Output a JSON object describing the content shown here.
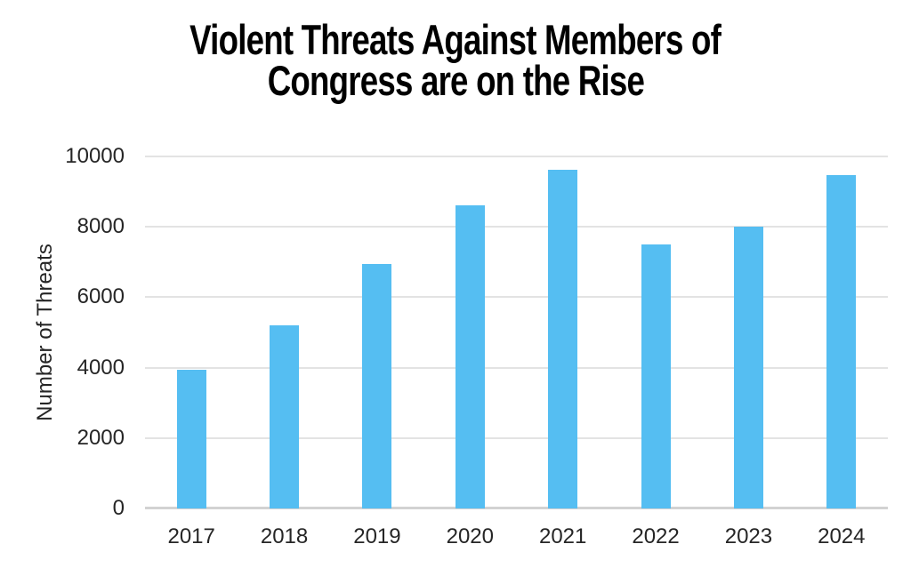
{
  "title": {
    "lines": [
      "Violent Threats Against Members of",
      "Congress are on the Rise"
    ]
  },
  "chart_data": {
    "type": "bar",
    "title": "Violent Threats Against Members of Congress are on the Rise",
    "categories": [
      "2017",
      "2018",
      "2019",
      "2020",
      "2021",
      "2022",
      "2023",
      "2024"
    ],
    "values": [
      3939,
      5206,
      6955,
      8613,
      9625,
      7501,
      8008,
      9474
    ],
    "xlabel": "",
    "ylabel": "Number of Threats",
    "ylim": [
      0,
      10000
    ],
    "yticks": [
      0,
      2000,
      4000,
      6000,
      8000,
      10000
    ],
    "grid": true,
    "legend": false,
    "colors": {
      "bar": "#55BEF2",
      "gridline": "#e3e3e3",
      "axis_line": "#d2d2d2",
      "tick_label": "#262626",
      "title": "#000000",
      "background": "#ffffff"
    }
  }
}
